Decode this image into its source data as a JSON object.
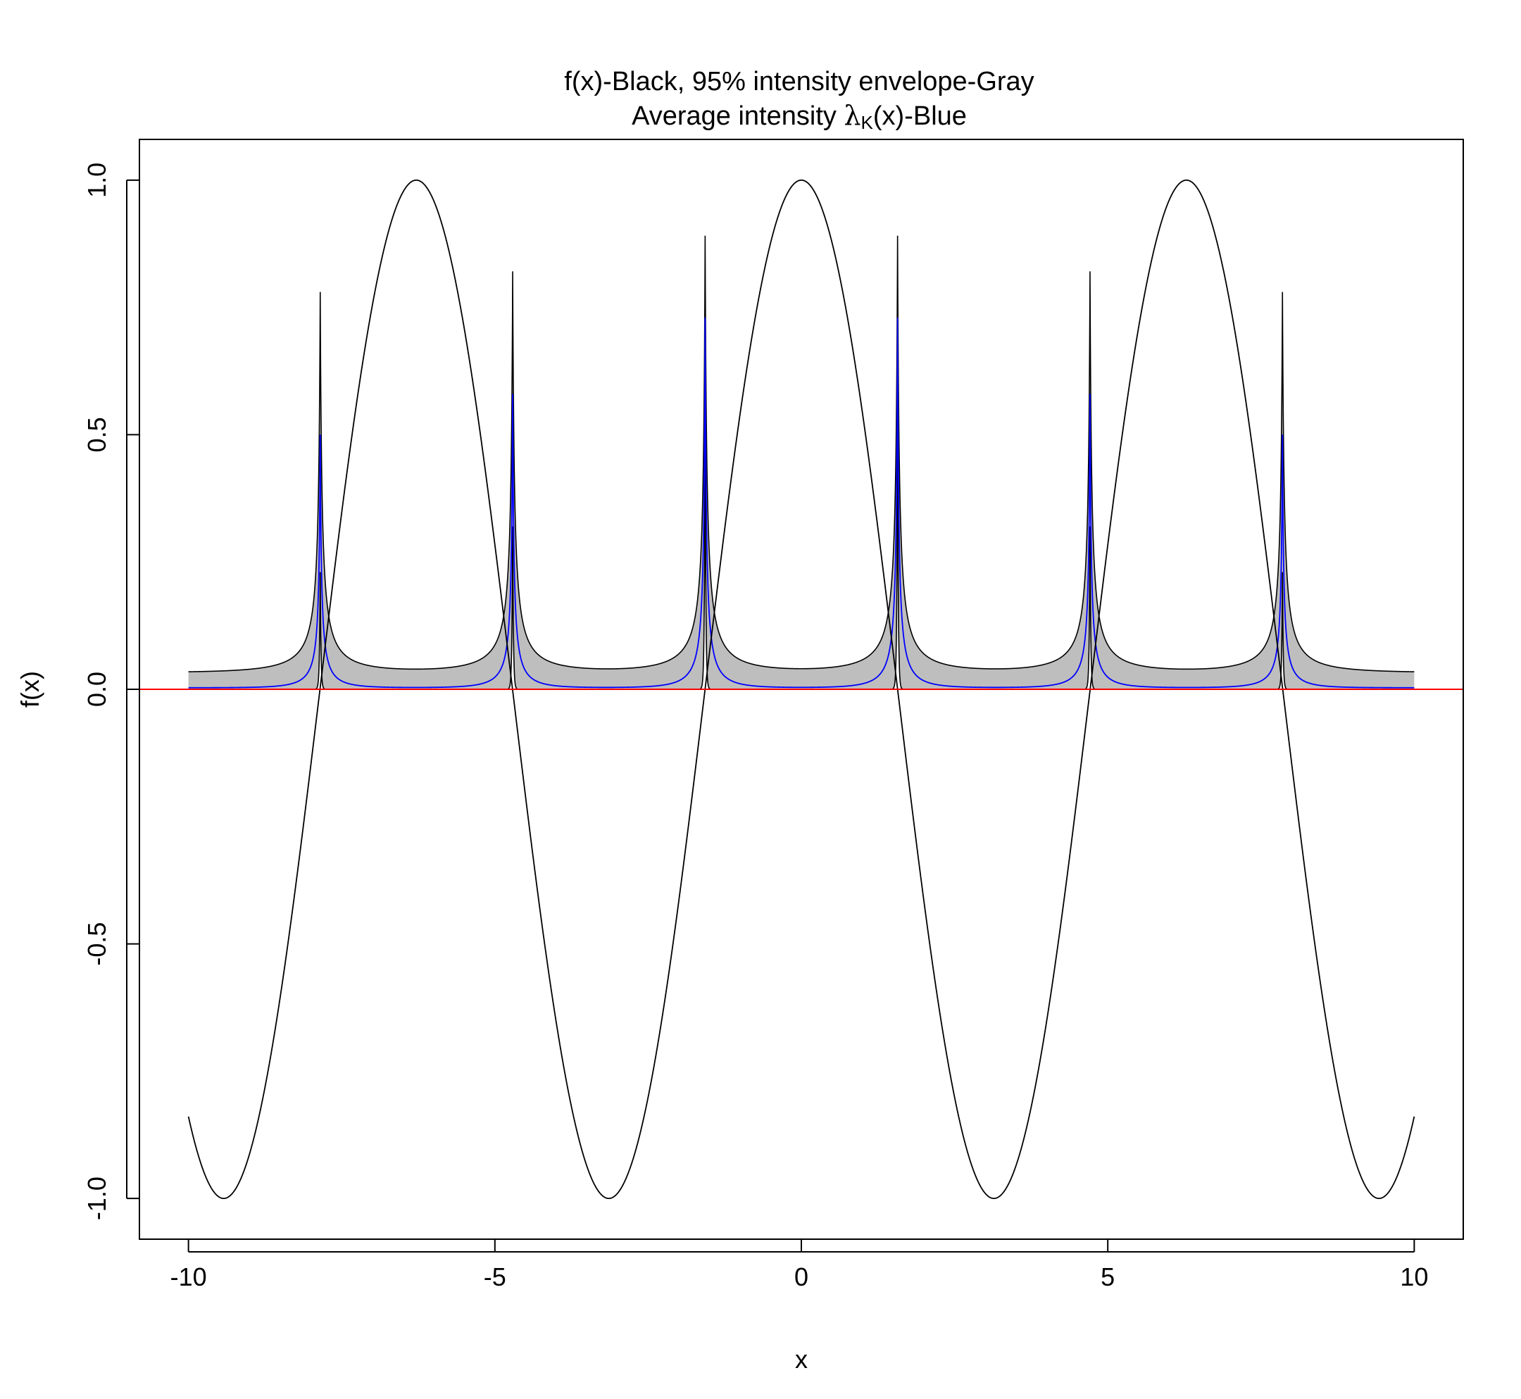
{
  "chart_data": {
    "type": "line",
    "title_parts": {
      "line1_before": "f",
      "line1_paren": "(x)",
      "line1_after": "-Black, 95% intensity envelope-Gray",
      "line2_before": "Average intensity ",
      "line2_lambda": "λ",
      "line2_sub": "K",
      "line2_paren": "(x)",
      "line2_after": "-Blue"
    },
    "xlabel": "x",
    "ylabel": "f(x)",
    "xlim": [
      -10.8,
      10.8
    ],
    "ylim": [
      -1.08,
      1.08
    ],
    "x_ticks": [
      -10,
      -5,
      0,
      5,
      10
    ],
    "x_tick_labels": [
      "-10",
      "-5",
      "0",
      "5",
      "10"
    ],
    "y_ticks": [
      -1.0,
      -0.5,
      0.0,
      0.5,
      1.0
    ],
    "y_tick_labels": [
      "-1.0",
      "-0.5",
      "0.0",
      "0.5",
      "1.0"
    ],
    "grid": false,
    "series": [
      {
        "name": "f(x)",
        "description_color": "black",
        "x_range": [
          -10,
          10
        ],
        "peak_x": [
          -6.28,
          0.0,
          6.28
        ],
        "peak_y": [
          1.0,
          1.0,
          1.0
        ],
        "trough_x": [
          -9.42,
          -3.14,
          3.14,
          9.42
        ],
        "trough_y": [
          -1.0,
          -1.0,
          -1.0,
          -1.0
        ],
        "endpoint_y": [
          -0.84,
          -0.84
        ]
      },
      {
        "name": "95% intensity envelope",
        "description_color": "gray",
        "x_range": [
          -10,
          10
        ],
        "spike_x": [
          -7.85,
          -4.71,
          -1.57,
          1.57,
          4.71,
          7.85
        ],
        "upper_peak_y": [
          0.78,
          0.82,
          0.89,
          0.89,
          0.82,
          0.78
        ],
        "lower_peak_y": [
          0.23,
          0.32,
          0.52,
          0.52,
          0.32,
          0.23
        ],
        "upper_baseline_y": 0.033,
        "endpoint_upper_y": 0.043
      },
      {
        "name": "Average intensity λK(x)",
        "description_color": "blue",
        "x_range": [
          -10,
          10
        ],
        "spike_x": [
          -7.85,
          -4.71,
          -1.57,
          1.57,
          4.71,
          7.85
        ],
        "peak_y": [
          0.5,
          0.58,
          0.73,
          0.73,
          0.58,
          0.5
        ],
        "baseline_y": 0.003
      }
    ],
    "reference_line": {
      "y": 0.0,
      "color": "#ff0000"
    },
    "colors": {
      "curve": "#000000",
      "envelope_fill": "#bebebe",
      "intensity": "#0000ff",
      "reference": "#ff0000"
    }
  }
}
